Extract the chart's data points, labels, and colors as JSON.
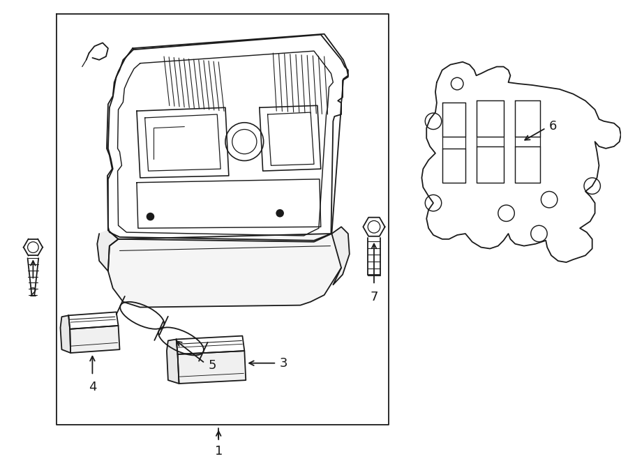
{
  "background_color": "#ffffff",
  "line_color": "#1a1a1a",
  "lw": 1.3,
  "fig_width": 9.0,
  "fig_height": 6.61
}
